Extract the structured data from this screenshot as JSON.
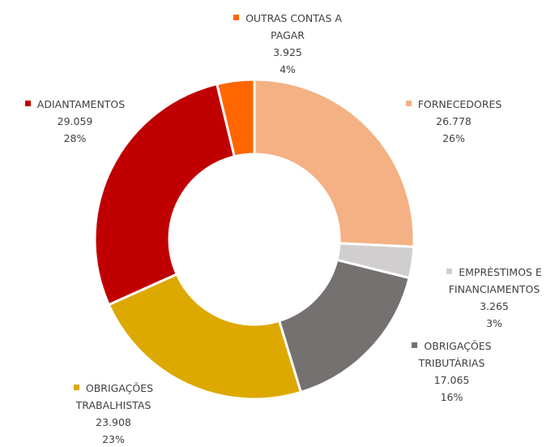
{
  "chart_data": {
    "type": "donut",
    "categories": [
      "FORNECEDORES",
      "EMPRÉSTIMOS E FINANCIAMENTOS",
      "OBRIGAÇÕES TRIBUTÁRIAS",
      "OBRIGAÇÕES TRABALHISTAS",
      "ADIANTAMENTOS",
      "OUTRAS CONTAS A PAGAR"
    ],
    "values": [
      26778,
      3265,
      17065,
      23908,
      29059,
      3925
    ],
    "value_labels": [
      "26.778",
      "3.265",
      "17.065",
      "23.908",
      "29.059",
      "3.925"
    ],
    "percent_labels": [
      "26%",
      "3%",
      "16%",
      "23%",
      "28%",
      "4%"
    ],
    "colors": [
      "#F4B183",
      "#D0CECE",
      "#767171",
      "#DDA800",
      "#C00000",
      "#FF6600"
    ]
  }
}
